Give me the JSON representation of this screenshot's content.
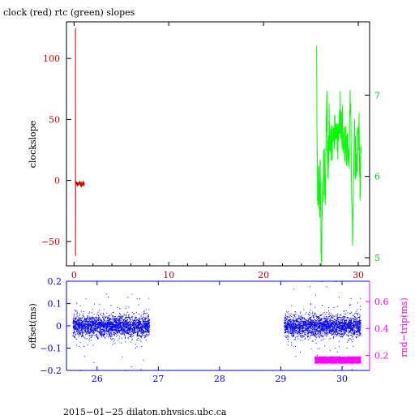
{
  "chart_data": [
    {
      "type": "line",
      "title": "clock (red) rtc (green) slopes",
      "ylabel": "clockslope",
      "xlim": [
        -0.8,
        31.2
      ],
      "ylim": [
        -70,
        130
      ],
      "y2lim": [
        4.9,
        7.9
      ],
      "xticks": [
        0,
        10,
        20,
        30
      ],
      "yticks": [
        -50,
        0,
        50,
        100
      ],
      "y2ticks": [
        5,
        6,
        7
      ],
      "colors": {
        "clock": "#d40000",
        "rtc": "#00ff00",
        "axis_left": "#d40000",
        "axis_right": "#00ff00"
      },
      "series": [
        {
          "name": "clock",
          "axis": "left",
          "x": [
            0.15,
            0.16,
            0.17,
            0.2,
            0.25,
            0.3,
            0.4,
            0.5,
            0.6,
            0.7,
            0.8,
            0.9,
            1.0,
            1.1
          ],
          "y": [
            125,
            -62,
            0,
            -3,
            -1,
            -4,
            -2,
            -3,
            -1,
            -4,
            -2,
            -3,
            -2,
            -3
          ]
        },
        {
          "name": "rtc",
          "axis": "right",
          "x": [
            25.6,
            25.7,
            25.8,
            25.9,
            26.0,
            26.1,
            26.2,
            26.4,
            26.5,
            26.6,
            26.7,
            26.8,
            26.9,
            27.0,
            27.2,
            27.4,
            27.6,
            27.8,
            28.0,
            28.2,
            28.4,
            28.6,
            28.8,
            29.0,
            29.2,
            29.4,
            29.6,
            29.8,
            30.0,
            30.1,
            30.2,
            30.3
          ],
          "y": [
            7.6,
            5.7,
            6.1,
            5.6,
            6.0,
            4.95,
            5.8,
            6.2,
            5.7,
            6.3,
            7.0,
            6.0,
            6.4,
            6.6,
            6.2,
            6.6,
            6.5,
            6.3,
            6.6,
            6.8,
            6.3,
            6.4,
            6.5,
            6.2,
            6.9,
            5.15,
            6.6,
            6.0,
            6.5,
            6.6,
            5.8,
            6.3
          ]
        }
      ]
    },
    {
      "type": "scatter",
      "ylabel": "offset(ms)",
      "y2label": "rnd−trip(ms)",
      "xlim": [
        25.5,
        30.45
      ],
      "ylim": [
        -0.2,
        0.2
      ],
      "y2lim": [
        0.09,
        0.75
      ],
      "xticks": [
        26,
        27,
        28,
        29,
        30
      ],
      "yticks": [
        -0.2,
        -0.1,
        0,
        0.1,
        0.2
      ],
      "y2ticks": [
        0.2,
        0.4,
        0.6
      ],
      "colors": {
        "offset": "#0000ff",
        "rndtrip": "#ff00ff",
        "axis_left": "#0000ff",
        "axis_right": "#ff00ff"
      },
      "series": [
        {
          "name": "offset",
          "axis": "left",
          "segments": [
            [
              25.6,
              26.85
            ],
            [
              29.05,
              30.3
            ]
          ],
          "center": 0.0,
          "spread": 0.05
        },
        {
          "name": "rnd-trip",
          "axis": "right",
          "segments": [
            [
              29.55,
              30.3
            ]
          ],
          "center": 0.17,
          "spread": 0.025
        }
      ]
    }
  ],
  "footer": "2015−01−25  dilaton.physics.ubc.ca"
}
